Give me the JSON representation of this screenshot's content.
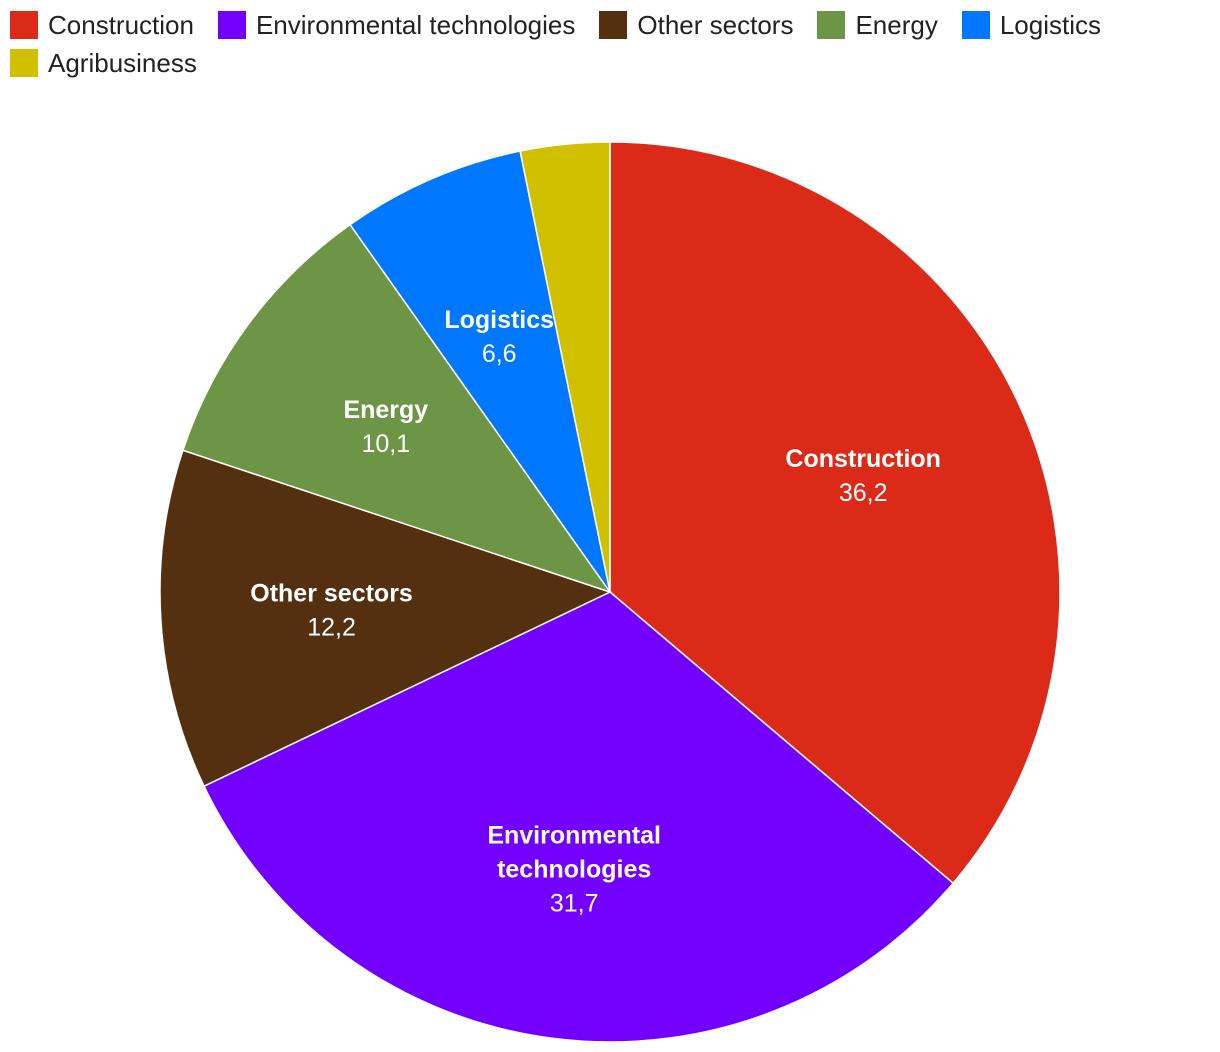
{
  "chart_data": {
    "type": "pie",
    "title": "",
    "series": [
      {
        "name": "Construction",
        "label_lines": [
          "Construction"
        ],
        "value": 36.2,
        "value_label": "36,2",
        "color": "#dc2a18",
        "show_label": true
      },
      {
        "name": "Environmental technologies",
        "label_lines": [
          "Environmental",
          "technologies"
        ],
        "value": 31.7,
        "value_label": "31,7",
        "color": "#7300ff",
        "show_label": true
      },
      {
        "name": "Other sectors",
        "label_lines": [
          "Other sectors"
        ],
        "value": 12.2,
        "value_label": "12,2",
        "color": "#543011",
        "show_label": true
      },
      {
        "name": "Energy",
        "label_lines": [
          "Energy"
        ],
        "value": 10.1,
        "value_label": "10,1",
        "color": "#6c9645",
        "show_label": true
      },
      {
        "name": "Logistics",
        "label_lines": [
          "Logistics"
        ],
        "value": 6.6,
        "value_label": "6,6",
        "color": "#0077ff",
        "show_label": true
      },
      {
        "name": "Agribusiness",
        "label_lines": [
          "Agribusiness"
        ],
        "value": 3.2,
        "value_label": "",
        "color": "#d1c000",
        "show_label": false
      }
    ],
    "legend": {
      "placement": "top-left",
      "items": [
        {
          "label": "Construction",
          "color": "#dc2a18"
        },
        {
          "label": "Environmental technologies",
          "color": "#7300ff"
        },
        {
          "label": "Other sectors",
          "color": "#543011"
        },
        {
          "label": "Energy",
          "color": "#6c9645"
        },
        {
          "label": "Logistics",
          "color": "#0077ff"
        },
        {
          "label": "Agribusiness",
          "color": "#d1c000"
        }
      ]
    }
  }
}
